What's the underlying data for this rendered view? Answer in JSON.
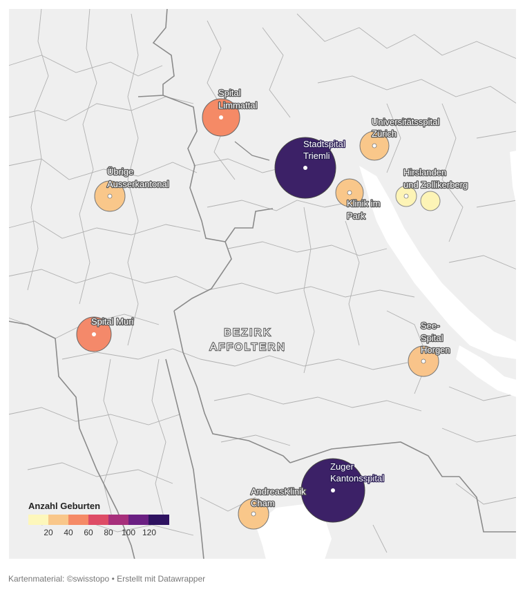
{
  "region_label": [
    "BEZIRK",
    "AFFOLTERN"
  ],
  "legend": {
    "title": "Anzahl Geburten",
    "colors": [
      "#fdf7bb",
      "#f9c78a",
      "#f58a66",
      "#de4c66",
      "#a72f7b",
      "#6a1f82",
      "#2e1260"
    ],
    "ticks": [
      "20",
      "40",
      "60",
      "80",
      "100",
      "120"
    ]
  },
  "hospitals": [
    {
      "name": "Spital Limmattal",
      "label_lines": [
        "Spital",
        "Limmattal"
      ],
      "births": 60,
      "color": "#f58a66"
    },
    {
      "name": "Stadtspital Triemli",
      "label_lines": [
        "Stadtspital",
        "Triemli"
      ],
      "births": 125,
      "color": "#3c2167"
    },
    {
      "name": "Universitätsspital Zürich",
      "label_lines": [
        "Universitätsspital",
        "Zürich"
      ],
      "births": 37,
      "color": "#f9c78a"
    },
    {
      "name": "Übrige Ausserkantonal",
      "label_lines": [
        "Übrige",
        "Ausserkantonal"
      ],
      "births": 37,
      "color": "#f9c78a"
    },
    {
      "name": "Klinik im Park",
      "label_lines": [
        "Klinik im",
        "Park"
      ],
      "births": 33,
      "color": "#f9c78a"
    },
    {
      "name": "Hirslanden (Hirslanden und Zollikerberg)",
      "label_lines": [
        "Hirslanden",
        "und Zollikerberg"
      ],
      "births": 18,
      "color": "#fdf4b6"
    },
    {
      "name": "Zollikerberg",
      "label_lines": [],
      "births": 18,
      "color": "#fdf4b6"
    },
    {
      "name": "Spital Muri",
      "label_lines": [
        "Spital Muri"
      ],
      "births": 55,
      "color": "#f4896a"
    },
    {
      "name": "See-Spital Horgen",
      "label_lines": [
        "See-",
        "Spital",
        "Horgen"
      ],
      "births": 35,
      "color": "#f9c48a"
    },
    {
      "name": "Zuger Kantonsspital",
      "label_lines": [
        "Zuger",
        "Kantonsspital"
      ],
      "births": 130,
      "color": "#3c2167"
    },
    {
      "name": "AndreasKlinik Cham",
      "label_lines": [
        "AndreasKlinik",
        "Cham"
      ],
      "births": 35,
      "color": "#f9c78a"
    }
  ],
  "footer": "Kartenmaterial: ©swisstopo • Erstellt mit Datawrapper"
}
